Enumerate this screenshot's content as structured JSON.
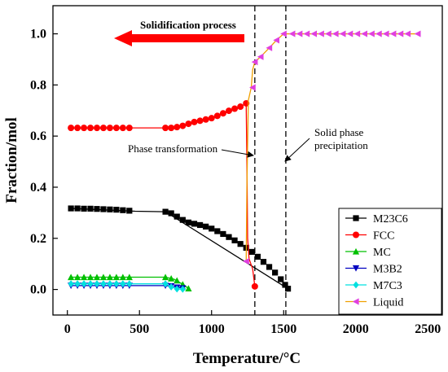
{
  "chart_data": {
    "type": "line",
    "xlabel": "Temperature/°C",
    "ylabel": "Fraction/mol",
    "xlim": [
      -100,
      2600
    ],
    "ylim": [
      -0.1,
      1.11
    ],
    "xticks": [
      0,
      500,
      1000,
      1500,
      2000,
      2500
    ],
    "yticks": [
      0.0,
      0.2,
      0.4,
      0.6,
      0.8,
      1.0
    ],
    "xtick_labels": [
      "0",
      "500",
      "1000",
      "1500",
      "2000",
      "2500"
    ],
    "ytick_labels": [
      "0.0",
      "0.2",
      "0.4",
      "0.6",
      "0.8",
      "1.0"
    ],
    "legend_position": "bottom-right",
    "annotations": {
      "process_label": "Solidification process",
      "phase_transformation": "Phase transformation",
      "solid_phase_line1": "Solid phase",
      "solid_phase_line2": "precipitation"
    },
    "vlines": [
      1300,
      1515
    ],
    "series": [
      {
        "name": "M23C6",
        "color": "#000000",
        "marker": "square",
        "points": [
          [
            25,
            0.317
          ],
          [
            70,
            0.317
          ],
          [
            115,
            0.316
          ],
          [
            160,
            0.316
          ],
          [
            205,
            0.315
          ],
          [
            250,
            0.314
          ],
          [
            295,
            0.313
          ],
          [
            340,
            0.312
          ],
          [
            385,
            0.31
          ],
          [
            430,
            0.308
          ],
          [
            470,
            0.306
          ],
          [
            680,
            0.304
          ],
          [
            720,
            0.298
          ],
          [
            760,
            0.285
          ],
          [
            800,
            0.272
          ],
          [
            840,
            0.262
          ],
          [
            880,
            0.257
          ],
          [
            920,
            0.252
          ],
          [
            960,
            0.246
          ],
          [
            1000,
            0.238
          ],
          [
            1040,
            0.228
          ],
          [
            1080,
            0.217
          ],
          [
            1120,
            0.205
          ],
          [
            1160,
            0.192
          ],
          [
            1200,
            0.178
          ],
          [
            1240,
            0.163
          ],
          [
            1280,
            0.147
          ],
          [
            1320,
            0.128
          ],
          [
            1360,
            0.108
          ],
          [
            1400,
            0.088
          ],
          [
            1440,
            0.066
          ],
          [
            1480,
            0.04
          ],
          [
            1510,
            0.018
          ],
          [
            1530,
            0.003
          ]
        ],
        "line_points": [
          [
            25,
            0.317
          ],
          [
            470,
            0.306
          ],
          [
            680,
            0.304
          ],
          [
            1530,
            0.003
          ]
        ],
        "marker_points": [
          [
            25,
            0.317
          ],
          [
            70,
            0.317
          ],
          [
            115,
            0.316
          ],
          [
            160,
            0.316
          ],
          [
            205,
            0.315
          ],
          [
            250,
            0.314
          ],
          [
            295,
            0.313
          ],
          [
            340,
            0.312
          ],
          [
            385,
            0.31
          ],
          [
            430,
            0.308
          ],
          [
            680,
            0.304
          ],
          [
            720,
            0.298
          ],
          [
            760,
            0.285
          ],
          [
            800,
            0.272
          ],
          [
            840,
            0.262
          ],
          [
            880,
            0.257
          ],
          [
            920,
            0.252
          ],
          [
            960,
            0.246
          ],
          [
            1000,
            0.238
          ],
          [
            1040,
            0.228
          ],
          [
            1080,
            0.217
          ],
          [
            1120,
            0.205
          ],
          [
            1160,
            0.192
          ],
          [
            1200,
            0.178
          ],
          [
            1240,
            0.163
          ],
          [
            1280,
            0.147
          ],
          [
            1320,
            0.128
          ],
          [
            1360,
            0.108
          ],
          [
            1400,
            0.088
          ],
          [
            1440,
            0.066
          ],
          [
            1480,
            0.04
          ],
          [
            1510,
            0.018
          ],
          [
            1530,
            0.003
          ]
        ]
      },
      {
        "name": "FCC",
        "color": "#ff0000",
        "marker": "circle",
        "line_points": [
          [
            25,
            0.632
          ],
          [
            680,
            0.632
          ],
          [
            760,
            0.635
          ],
          [
            1000,
            0.668
          ],
          [
            1200,
            0.715
          ],
          [
            1240,
            0.728
          ],
          [
            1245,
            0.5
          ],
          [
            1250,
            0.2
          ],
          [
            1260,
            0.12
          ],
          [
            1285,
            0.08
          ],
          [
            1300,
            0.012
          ]
        ],
        "marker_points": [
          [
            25,
            0.632
          ],
          [
            70,
            0.632
          ],
          [
            115,
            0.632
          ],
          [
            160,
            0.632
          ],
          [
            205,
            0.632
          ],
          [
            250,
            0.632
          ],
          [
            295,
            0.632
          ],
          [
            340,
            0.632
          ],
          [
            385,
            0.632
          ],
          [
            430,
            0.632
          ],
          [
            680,
            0.632
          ],
          [
            720,
            0.632
          ],
          [
            760,
            0.635
          ],
          [
            800,
            0.64
          ],
          [
            840,
            0.648
          ],
          [
            880,
            0.655
          ],
          [
            920,
            0.66
          ],
          [
            960,
            0.665
          ],
          [
            1000,
            0.67
          ],
          [
            1040,
            0.679
          ],
          [
            1080,
            0.689
          ],
          [
            1120,
            0.699
          ],
          [
            1160,
            0.707
          ],
          [
            1200,
            0.715
          ],
          [
            1240,
            0.728
          ],
          [
            1300,
            0.012
          ]
        ]
      },
      {
        "name": "MC",
        "color": "#00c000",
        "marker": "triangle-up",
        "line_points": [
          [
            25,
            0.048
          ],
          [
            680,
            0.048
          ],
          [
            740,
            0.04
          ],
          [
            800,
            0.02
          ],
          [
            840,
            0.004
          ]
        ],
        "marker_points": [
          [
            25,
            0.048
          ],
          [
            70,
            0.048
          ],
          [
            115,
            0.048
          ],
          [
            160,
            0.048
          ],
          [
            205,
            0.048
          ],
          [
            250,
            0.048
          ],
          [
            295,
            0.048
          ],
          [
            340,
            0.048
          ],
          [
            385,
            0.048
          ],
          [
            430,
            0.048
          ],
          [
            680,
            0.048
          ],
          [
            720,
            0.043
          ],
          [
            760,
            0.035
          ],
          [
            800,
            0.02
          ],
          [
            840,
            0.004
          ]
        ]
      },
      {
        "name": "M3B2",
        "color": "#0000c0",
        "marker": "triangle-down",
        "line_points": [
          [
            25,
            0.015
          ],
          [
            680,
            0.015
          ],
          [
            720,
            0.013
          ],
          [
            800,
            0.005
          ],
          [
            820,
            0.002
          ]
        ],
        "marker_points": [
          [
            25,
            0.015
          ],
          [
            70,
            0.015
          ],
          [
            115,
            0.015
          ],
          [
            160,
            0.015
          ],
          [
            205,
            0.015
          ],
          [
            250,
            0.015
          ],
          [
            295,
            0.015
          ],
          [
            340,
            0.015
          ],
          [
            385,
            0.015
          ],
          [
            430,
            0.015
          ],
          [
            680,
            0.015
          ],
          [
            720,
            0.013
          ],
          [
            760,
            0.008
          ],
          [
            800,
            0.005
          ]
        ]
      },
      {
        "name": "M7C3",
        "color": "#00e0e0",
        "marker": "diamond",
        "line_points": [
          [
            25,
            0.022
          ],
          [
            680,
            0.022
          ],
          [
            720,
            0.01
          ],
          [
            760,
            0.002
          ],
          [
            800,
            0.001
          ]
        ],
        "marker_points": [
          [
            25,
            0.022
          ],
          [
            70,
            0.022
          ],
          [
            115,
            0.022
          ],
          [
            160,
            0.022
          ],
          [
            205,
            0.022
          ],
          [
            250,
            0.022
          ],
          [
            295,
            0.022
          ],
          [
            340,
            0.022
          ],
          [
            385,
            0.022
          ],
          [
            430,
            0.022
          ],
          [
            680,
            0.022
          ],
          [
            720,
            0.01
          ],
          [
            760,
            0.002
          ],
          [
            800,
            0.001
          ]
        ]
      },
      {
        "name": "Liquid",
        "color": "#e040e0",
        "line_color": "#f0a000",
        "marker": "triangle-left",
        "line_points": [
          [
            1240,
            0.11
          ],
          [
            1245,
            0.4
          ],
          [
            1255,
            0.74
          ],
          [
            1275,
            0.79
          ],
          [
            1285,
            0.86
          ],
          [
            1300,
            0.89
          ],
          [
            1340,
            0.91
          ],
          [
            1400,
            0.945
          ],
          [
            1450,
            0.975
          ],
          [
            1500,
            1.0
          ],
          [
            2430,
            1.0
          ]
        ],
        "marker_points": [
          [
            1240,
            0.11
          ],
          [
            1285,
            0.79
          ],
          [
            1300,
            0.89
          ],
          [
            1340,
            0.91
          ],
          [
            1400,
            0.945
          ],
          [
            1450,
            0.975
          ],
          [
            1500,
            1.0
          ],
          [
            1560,
            1.0
          ],
          [
            1610,
            1.0
          ],
          [
            1660,
            1.0
          ],
          [
            1710,
            1.0
          ],
          [
            1760,
            1.0
          ],
          [
            1810,
            1.0
          ],
          [
            1860,
            1.0
          ],
          [
            1910,
            1.0
          ],
          [
            1960,
            1.0
          ],
          [
            2010,
            1.0
          ],
          [
            2060,
            1.0
          ],
          [
            2110,
            1.0
          ],
          [
            2160,
            1.0
          ],
          [
            2210,
            1.0
          ],
          [
            2260,
            1.0
          ],
          [
            2310,
            1.0
          ],
          [
            2360,
            1.0
          ],
          [
            2430,
            1.0
          ]
        ]
      }
    ]
  }
}
